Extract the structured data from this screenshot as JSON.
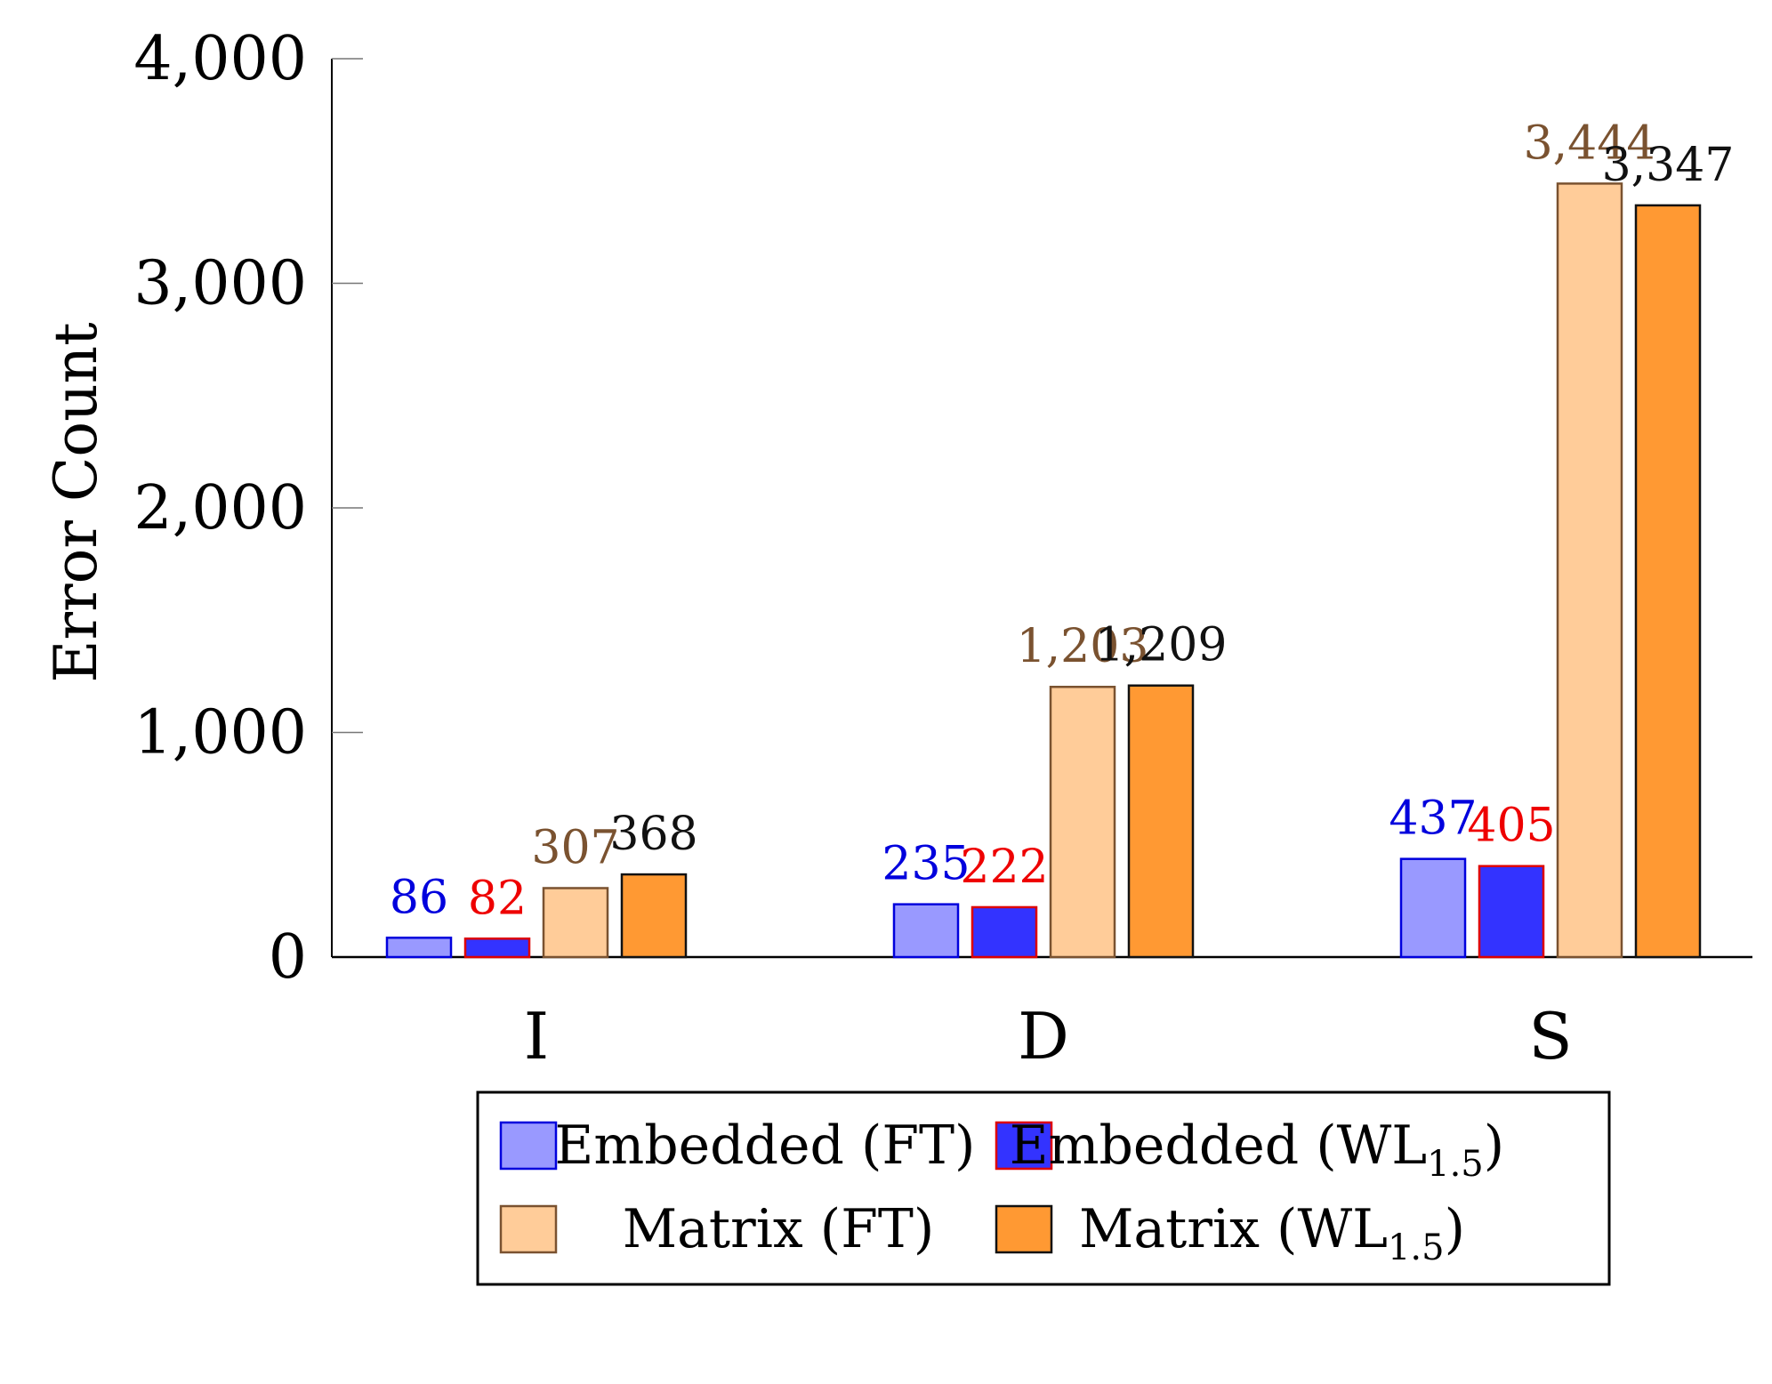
{
  "chart_data": {
    "type": "bar",
    "title": "",
    "xlabel": "",
    "ylabel": "Error Count",
    "ylim": [
      0,
      4000
    ],
    "yticks": [
      {
        "value": 0,
        "label": "0"
      },
      {
        "value": 1000,
        "label": "1,000"
      },
      {
        "value": 2000,
        "label": "2,000"
      },
      {
        "value": 3000,
        "label": "3,000"
      },
      {
        "value": 4000,
        "label": "4,000"
      }
    ],
    "categories": [
      "I",
      "D",
      "S"
    ],
    "series": [
      {
        "name": "Embedded (FT)",
        "legend_main": "Embedded (FT)",
        "legend_sub": "",
        "fill": "#9999ff",
        "stroke": "#0000dd",
        "label_color": "#0000dd",
        "values": [
          86,
          235,
          437
        ],
        "value_labels": [
          "86",
          "235",
          "437"
        ]
      },
      {
        "name": "Embedded (WL1.5)",
        "legend_main": "Embedded (WL",
        "legend_sub": "1.5",
        "fill": "#3333ff",
        "stroke": "#dd0000",
        "label_color": "#ee0000",
        "values": [
          82,
          222,
          405
        ],
        "value_labels": [
          "82",
          "222",
          "405"
        ]
      },
      {
        "name": "Matrix (FT)",
        "legend_main": "Matrix (FT)",
        "legend_sub": "",
        "fill": "#ffcc99",
        "stroke": "#7a5230",
        "label_color": "#7a5230",
        "values": [
          307,
          1203,
          3444
        ],
        "value_labels": [
          "307",
          "1,203",
          "3,444"
        ]
      },
      {
        "name": "Matrix (WL1.5)",
        "legend_main": "Matrix (WL",
        "legend_sub": "1.5",
        "fill": "#ff9933",
        "stroke": "#111111",
        "label_color": "#111111",
        "values": [
          368,
          1209,
          3347
        ],
        "value_labels": [
          "368",
          "1,209",
          "3,347"
        ]
      }
    ],
    "legend": {
      "position": "bottom",
      "columns": 2,
      "close_paren": ")"
    }
  }
}
